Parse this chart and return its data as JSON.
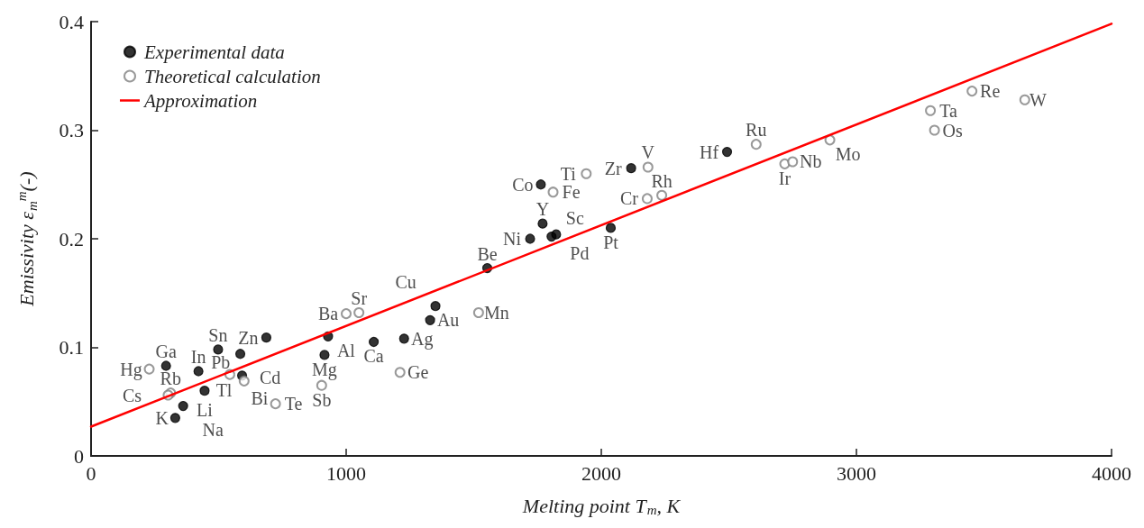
{
  "chart_data": {
    "type": "scatter",
    "xlabel": "Melting point T$_{m}$, K",
    "ylabel": "Emissivity ε$_{m}$$^{m}$(-)",
    "xlim": [
      0,
      4000
    ],
    "xticks": [
      0,
      1000,
      2000,
      3000,
      4000
    ],
    "ylim": [
      0,
      0.4
    ],
    "yticks": [
      0,
      0.1,
      0.2,
      0.3,
      0.4
    ],
    "grid": false,
    "legend": "top left",
    "series": [
      {
        "name": "Experimental data",
        "type": "scatter",
        "marker": "circle",
        "color": "#000000",
        "x": [
          294,
          421,
          498,
          585,
          592,
          445,
          361,
          330,
          687,
          929,
          915,
          1108,
          1227,
          1329,
          1350,
          1553,
          1721,
          1770,
          1805,
          1823,
          1763,
          2037,
          2117,
          2493
        ],
        "values": [
          0.083,
          0.078,
          0.098,
          0.094,
          0.074,
          0.06,
          0.046,
          0.035,
          0.109,
          0.11,
          0.093,
          0.105,
          0.108,
          0.125,
          0.138,
          0.173,
          0.2,
          0.214,
          0.202,
          0.204,
          0.25,
          0.21,
          0.265,
          0.28
        ],
        "value_labels": [
          "Ga",
          "In",
          "Sn",
          "Cd",
          "Tl",
          "Li",
          "Na",
          "K",
          "Zn",
          "Al",
          "Mg",
          "Ca",
          "Ag",
          "Au",
          "Cu",
          "Be",
          "Ni",
          "Y",
          "Sc",
          "Pd",
          "Co",
          "Pt",
          "Zr",
          "Hf"
        ]
      },
      {
        "name": "Theoretical calculation",
        "type": "scatter",
        "marker": "open_circle",
        "color": "#808080",
        "x": [
          228,
          312,
          302,
          544,
          600,
          723,
          904,
          1211,
          1000,
          1050,
          1519,
          1811,
          1941,
          2180,
          2237,
          2183,
          2607,
          2719,
          2750,
          2896,
          3290,
          3306,
          3453,
          3660
        ],
        "values": [
          0.08,
          0.058,
          0.056,
          0.075,
          0.069,
          0.048,
          0.065,
          0.077,
          0.131,
          0.132,
          0.132,
          0.243,
          0.26,
          0.237,
          0.24,
          0.266,
          0.287,
          0.269,
          0.271,
          0.291,
          0.318,
          0.3,
          0.336,
          0.328
        ],
        "value_labels": [
          "Hg",
          "Rb",
          "Cs",
          "Bi",
          "Pb",
          "Te",
          "Sb",
          "Ge",
          "Ba",
          "Sr",
          "Mn",
          "Fe",
          "Ti",
          "Cr",
          "Rh",
          "V",
          "Ru",
          "Ir",
          "Nb",
          "Mo",
          "Ta",
          "Os",
          "Re",
          "W"
        ]
      },
      {
        "name": "Approximation",
        "type": "line",
        "marker": "none",
        "color": "#ff0000",
        "x": [
          0,
          4000
        ],
        "values": [
          0.027,
          0.398
        ]
      }
    ]
  }
}
